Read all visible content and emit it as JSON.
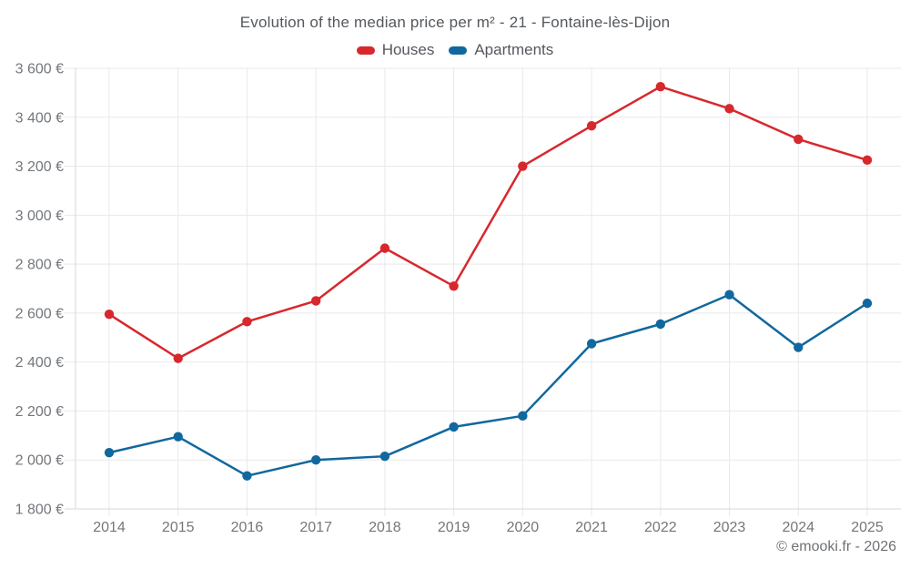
{
  "chart_data": {
    "type": "line",
    "title": "Evolution of the median price per m² - 21 - Fontaine-lès-Dijon",
    "categories": [
      "2014",
      "2015",
      "2016",
      "2017",
      "2018",
      "2019",
      "2020",
      "2021",
      "2022",
      "2023",
      "2024",
      "2025"
    ],
    "series": [
      {
        "name": "Houses",
        "color": "#d7282d",
        "values": [
          2595,
          2415,
          2565,
          2650,
          2865,
          2710,
          3200,
          3365,
          3525,
          3435,
          3310,
          3225
        ]
      },
      {
        "name": "Apartments",
        "color": "#11689e",
        "values": [
          2030,
          2095,
          1935,
          2000,
          2015,
          2135,
          2180,
          2475,
          2555,
          2675,
          2460,
          2640
        ]
      }
    ],
    "ylim": [
      1800,
      3600
    ],
    "yticks": [
      1800,
      2000,
      2200,
      2400,
      2600,
      2800,
      3000,
      3200,
      3400,
      3600
    ],
    "ytick_labels": [
      "1 800 €",
      "2 000 €",
      "2 200 €",
      "2 400 €",
      "2 600 €",
      "2 800 €",
      "3 000 €",
      "3 200 €",
      "3 400 €",
      "3 600 €"
    ],
    "grid": true,
    "legend_position": "top",
    "marker": "circle"
  },
  "footer": {
    "text": "© emooki.fr - 2026"
  },
  "colors": {
    "grid": "#e9e9e9",
    "axis": "#d7d7d7",
    "tick_label": "#73777b",
    "title": "#54585d"
  }
}
